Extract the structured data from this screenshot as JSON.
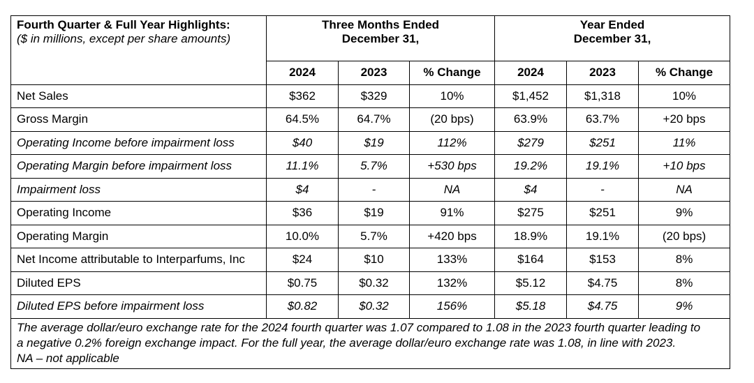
{
  "header": {
    "title": "Fourth Quarter & Full Year Highlights:",
    "subtitle": "($ in millions, except per share amounts)",
    "three_months_line1": "Three Months Ended",
    "three_months_line2": "December 31,",
    "year_line1": "Year Ended",
    "year_line2": "December 31,",
    "columns": [
      "2024",
      "2023",
      "% Change",
      "2024",
      "2023",
      "% Change"
    ]
  },
  "rows": [
    {
      "label": "Net Sales",
      "italic": false,
      "values": [
        "$362",
        "$329",
        "10%",
        "$1,452",
        "$1,318",
        "10%"
      ]
    },
    {
      "label": "Gross Margin",
      "italic": false,
      "values": [
        "64.5%",
        "64.7%",
        "(20 bps)",
        "63.9%",
        "63.7%",
        "+20 bps"
      ]
    },
    {
      "label": "Operating Income before impairment loss",
      "italic": true,
      "values": [
        "$40",
        "$19",
        "112%",
        "$279",
        "$251",
        "11%"
      ]
    },
    {
      "label": "Operating Margin before impairment loss",
      "italic": true,
      "values": [
        "11.1%",
        "5.7%",
        "+530 bps",
        "19.2%",
        "19.1%",
        "+10 bps"
      ]
    },
    {
      "label": "Impairment loss",
      "italic": true,
      "values": [
        "$4",
        "-",
        "NA",
        "$4",
        "-",
        "NA"
      ]
    },
    {
      "label": "Operating Income",
      "italic": false,
      "values": [
        "$36",
        "$19",
        "91%",
        "$275",
        "$251",
        "9%"
      ]
    },
    {
      "label": "Operating Margin",
      "italic": false,
      "values": [
        "10.0%",
        "5.7%",
        "+420 bps",
        "18.9%",
        "19.1%",
        "(20 bps)"
      ]
    },
    {
      "label": "Net Income attributable to Interparfums, Inc",
      "italic": false,
      "values": [
        "$24",
        "$10",
        "133%",
        "$164",
        "$153",
        "8%"
      ]
    },
    {
      "label": "Diluted EPS",
      "italic": false,
      "values": [
        "$0.75",
        "$0.32",
        "132%",
        "$5.12",
        "$4.75",
        "8%"
      ]
    },
    {
      "label": "Diluted EPS before impairment loss",
      "italic": true,
      "values": [
        "$0.82",
        "$0.32",
        "156%",
        "$5.18",
        "$4.75",
        "9%"
      ]
    }
  ],
  "note": {
    "line1": "The average dollar/euro exchange rate for the 2024 fourth quarter was 1.07 compared to 1.08 in the 2023 fourth quarter leading to",
    "line2": "a negative 0.2% foreign exchange impact. For the full year, the average dollar/euro exchange rate was 1.08, in line with 2023.",
    "line3": "NA – not applicable"
  }
}
